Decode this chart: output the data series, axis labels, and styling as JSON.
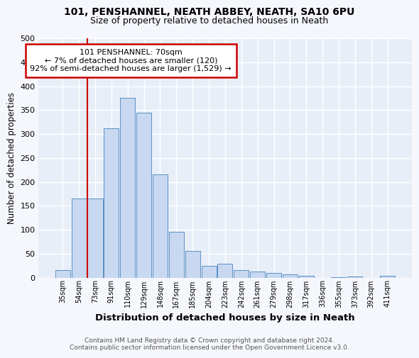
{
  "title1": "101, PENSHANNEL, NEATH ABBEY, NEATH, SA10 6PU",
  "title2": "Size of property relative to detached houses in Neath",
  "xlabel": "Distribution of detached houses by size in Neath",
  "ylabel": "Number of detached properties",
  "categories": [
    "35sqm",
    "54sqm",
    "73sqm",
    "91sqm",
    "110sqm",
    "129sqm",
    "148sqm",
    "167sqm",
    "185sqm",
    "204sqm",
    "223sqm",
    "242sqm",
    "261sqm",
    "279sqm",
    "298sqm",
    "317sqm",
    "336sqm",
    "355sqm",
    "373sqm",
    "392sqm",
    "411sqm"
  ],
  "values": [
    15,
    165,
    165,
    312,
    375,
    345,
    215,
    95,
    55,
    25,
    29,
    16,
    13,
    10,
    7,
    4,
    0,
    1,
    2,
    0,
    4
  ],
  "bar_color": "#c8d8f0",
  "bar_edge_color": "#5b8fc4",
  "annotation_line1": "101 PENSHANNEL: 70sqm",
  "annotation_line2": "← 7% of detached houses are smaller (120)",
  "annotation_line3": "92% of semi-detached houses are larger (1,529) →",
  "annotation_box_color": "#ffffff",
  "annotation_box_edge": "#cc0000",
  "red_line_color": "#cc0000",
  "footer1": "Contains HM Land Registry data © Crown copyright and database right 2024.",
  "footer2": "Contains public sector information licensed under the Open Government Licence v3.0.",
  "bg_color": "#e8eef8",
  "plot_bg_color": "#e8eef8",
  "fig_bg_color": "#f5f7fc",
  "grid_color": "#ffffff",
  "ylim": [
    0,
    500
  ],
  "yticks": [
    0,
    50,
    100,
    150,
    200,
    250,
    300,
    350,
    400,
    450,
    500
  ]
}
